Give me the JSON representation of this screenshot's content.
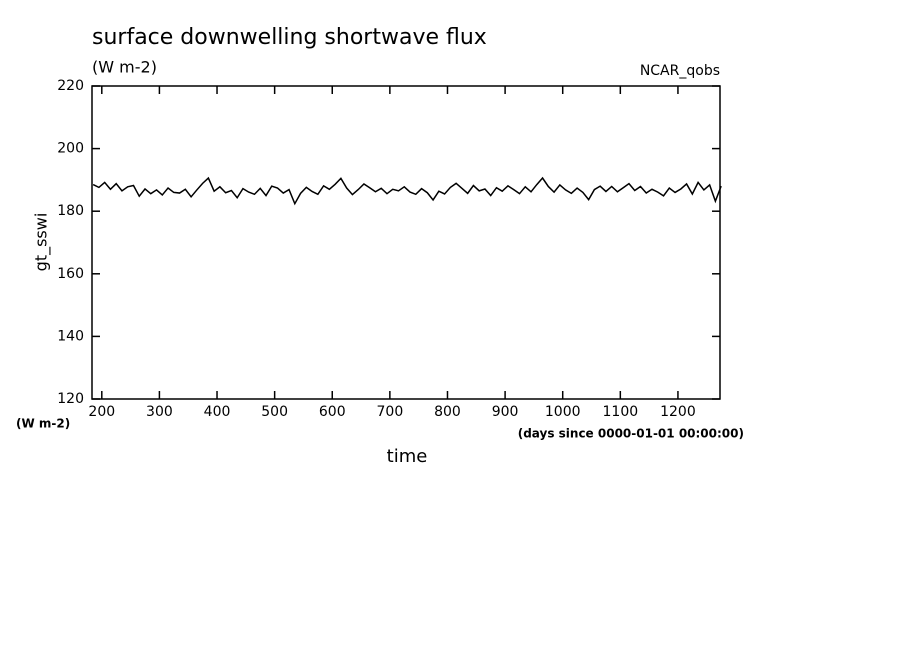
{
  "chart_data": {
    "type": "line",
    "title": "surface downwelling shortwave flux",
    "subtitle": "(W m-2)",
    "source": "NCAR_qobs",
    "y_label": "gt_sswi",
    "y_unit": "(W m-2)",
    "x_label": "time",
    "x_unit": "(days since 0000-01-01 00:00:00)",
    "xlim": [
      183,
      1273
    ],
    "ylim": [
      120,
      220
    ],
    "xticks": [
      200,
      300,
      400,
      500,
      600,
      700,
      800,
      900,
      1000,
      1100,
      1200
    ],
    "yticks": [
      120,
      140,
      160,
      180,
      200,
      220
    ],
    "x": [
      185,
      195,
      205,
      215,
      225,
      235,
      245,
      255,
      265,
      275,
      285,
      295,
      305,
      315,
      325,
      335,
      345,
      355,
      365,
      375,
      385,
      395,
      405,
      415,
      425,
      435,
      445,
      455,
      465,
      475,
      485,
      495,
      505,
      515,
      525,
      535,
      545,
      555,
      565,
      575,
      585,
      595,
      605,
      615,
      625,
      635,
      645,
      655,
      665,
      675,
      685,
      695,
      705,
      715,
      725,
      735,
      745,
      755,
      765,
      775,
      785,
      795,
      805,
      815,
      825,
      835,
      845,
      855,
      865,
      875,
      885,
      895,
      905,
      915,
      925,
      935,
      945,
      955,
      965,
      975,
      985,
      995,
      1005,
      1015,
      1025,
      1035,
      1045,
      1055,
      1065,
      1075,
      1085,
      1095,
      1105,
      1115,
      1125,
      1135,
      1145,
      1155,
      1165,
      1175,
      1185,
      1195,
      1205,
      1215,
      1225,
      1235,
      1245,
      1255,
      1265,
      1275
    ],
    "series": [
      {
        "color": "#000000",
        "values": [
          188.5,
          187.6,
          189.2,
          187.0,
          188.8,
          186.5,
          187.8,
          188.2,
          184.8,
          187.1,
          185.6,
          186.8,
          185.2,
          187.4,
          186.0,
          185.8,
          187.0,
          184.6,
          186.8,
          188.9,
          190.6,
          186.4,
          187.8,
          185.9,
          186.6,
          184.3,
          187.2,
          186.1,
          185.4,
          187.3,
          185.0,
          188.0,
          187.4,
          185.8,
          186.9,
          182.4,
          185.7,
          187.6,
          186.3,
          185.4,
          188.1,
          187.0,
          188.6,
          190.5,
          187.4,
          185.3,
          186.9,
          188.7,
          187.5,
          186.2,
          187.3,
          185.6,
          187.0,
          186.5,
          187.8,
          186.1,
          185.4,
          187.2,
          185.9,
          183.6,
          186.4,
          185.5,
          187.6,
          188.9,
          187.3,
          185.7,
          188.2,
          186.5,
          187.1,
          185.0,
          187.5,
          186.4,
          188.1,
          186.9,
          185.6,
          187.8,
          186.2,
          188.5,
          190.6,
          187.9,
          186.1,
          188.4,
          186.8,
          185.7,
          187.4,
          186.0,
          183.7,
          186.9,
          188.0,
          186.3,
          187.9,
          186.2,
          187.5,
          188.8,
          186.6,
          187.9,
          185.8,
          187.0,
          186.1,
          184.9,
          187.4,
          186.0,
          187.1,
          188.7,
          185.5,
          189.2,
          186.8,
          188.4,
          183.2,
          188.0
        ]
      }
    ]
  }
}
